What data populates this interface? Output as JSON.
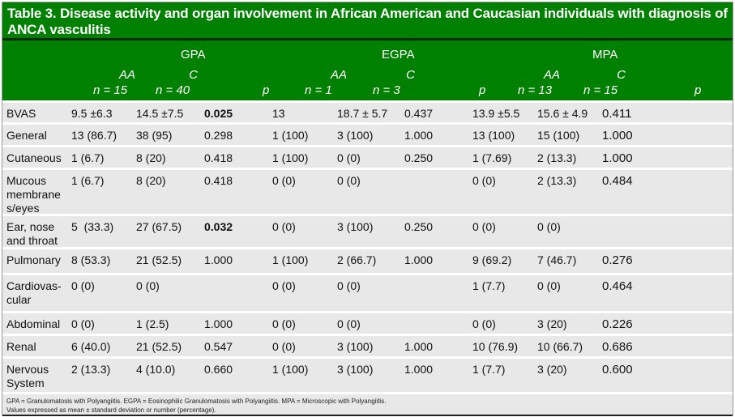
{
  "title": "Table 3. Disease activity and organ involvement in African American and Caucasian individuals with diagnosis of ANCA vasculitis",
  "groups": [
    "GPA",
    "EGPA",
    "MPA"
  ],
  "subheaders": [
    {
      "line1": "AA",
      "line2": "n = 15"
    },
    {
      "line1": "C",
      "line2": "n = 40"
    },
    {
      "line1": "",
      "line2": "p"
    },
    {
      "line1": "AA",
      "line2": "n = 1"
    },
    {
      "line1": "C",
      "line2": "n = 3"
    },
    {
      "line1": "",
      "line2": "p"
    },
    {
      "line1": "AA",
      "line2": "n = 13"
    },
    {
      "line1": "C",
      "line2": "n = 15"
    },
    {
      "line1": "",
      "line2": "p"
    }
  ],
  "rows": [
    {
      "label": "BVAS",
      "cells": [
        "9.5 ±6.3",
        "14.5 ±7.5",
        "0.025",
        "13",
        "18.7 ± 5.7",
        "0.437",
        "13.9 ±5.5",
        "15.6 ± 4.9",
        "0.411"
      ],
      "bold": [
        2
      ]
    },
    {
      "label": "General",
      "cells": [
        "13 (86.7)",
        "38 (95)",
        "0.298",
        "1 (100)",
        "3 (100)",
        "1.000",
        "13 (100)",
        "15 (100)",
        "1.000"
      ],
      "bold": []
    },
    {
      "label": "Cutaneous",
      "cells": [
        "1 (6.7)",
        "8 (20)",
        "0.418",
        "1 (100)",
        "0 (0)",
        "0.250",
        "1 (7.69)",
        "2 (13.3)",
        "1.000"
      ],
      "bold": []
    },
    {
      "label": "Mucous membrane s/eyes",
      "cells": [
        "1 (6.7)",
        "8 (20)",
        "0.418",
        "0 (0)",
        "0 (0)",
        "",
        "0 (0)",
        "2 (13.3)",
        "0.484"
      ],
      "bold": []
    },
    {
      "label": "Ear, nose and throat",
      "cells": [
        "5  (33.3)",
        "27 (67.5)",
        "0.032",
        "0 (0)",
        "3 (100)",
        "0.250",
        "0 (0)",
        "0 (0)",
        ""
      ],
      "bold": [
        2
      ]
    },
    {
      "label": "Pulmonary",
      "cells": [
        "8 (53.3)",
        "21 (52.5)",
        "1.000",
        "1 (100)",
        "2 (66.7)",
        "1.000",
        "9 (69.2)",
        "7 (46.7)",
        "0.276"
      ],
      "bold": []
    },
    {
      "label": "Cardiovas-cular",
      "cells": [
        "0 (0)",
        "0 (0)",
        "",
        "0 (0)",
        "0 (0)",
        "",
        "1 (7.7)",
        "0 (0)",
        "0.464"
      ],
      "bold": []
    },
    {
      "label": "Abdominal",
      "cells": [
        "0 (0)",
        "1 (2.5)",
        "1.000",
        "0 (0)",
        "0 (0)",
        "",
        "0 (0)",
        "3 (20)",
        "0.226"
      ],
      "bold": []
    },
    {
      "label": "Renal",
      "cells": [
        "6 (40.0)",
        "21 (52.5)",
        "0.547",
        "0 (0)",
        "3 (100)",
        "1.000",
        "10 (76.9)",
        "10 (66.7)",
        "0.686"
      ],
      "bold": []
    },
    {
      "label": "Nervous System",
      "cells": [
        "2 (13.3)",
        "4 (10.0)",
        "0.660",
        "1 (100)",
        "3 (100)",
        "1.000",
        "1 (7.7)",
        "3 (20)",
        "0.600"
      ],
      "bold": []
    }
  ],
  "footnotes": [
    "GPA = Granulomatosis with Polyangiitis. EGPA = Eosinophilic Granulomatosis with Polyangiitis. MPA = Microscopic with Polyangiitis.",
    "Values expressed as mean ± standard deviation or number (percentage)."
  ]
}
